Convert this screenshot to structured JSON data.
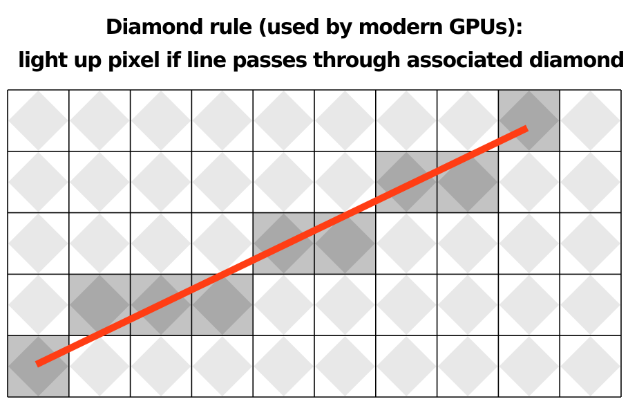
{
  "title": {
    "line1": "Diamond rule (used by modern GPUs):",
    "line2": "light up pixel if line passes through associated diamond"
  },
  "grid": {
    "columns": 10,
    "rows": 5,
    "highlighted_cells": [
      {
        "col": 8,
        "row": 0
      },
      {
        "col": 6,
        "row": 1
      },
      {
        "col": 7,
        "row": 1
      },
      {
        "col": 4,
        "row": 2
      },
      {
        "col": 5,
        "row": 2
      },
      {
        "col": 1,
        "row": 3
      },
      {
        "col": 2,
        "row": 3
      },
      {
        "col": 3,
        "row": 3
      },
      {
        "col": 0,
        "row": 4
      }
    ]
  },
  "line": {
    "start": {
      "col": 0.47,
      "row": 4.47
    },
    "end": {
      "col": 8.47,
      "row": 0.62
    }
  },
  "colors": {
    "background": "#ffffff",
    "grid_line": "#000000",
    "diamond": "#e8e8e8",
    "highlight_cell": "#c3c3c3",
    "highlight_diamond": "#a9a9a9",
    "line": "#ff3d14"
  }
}
